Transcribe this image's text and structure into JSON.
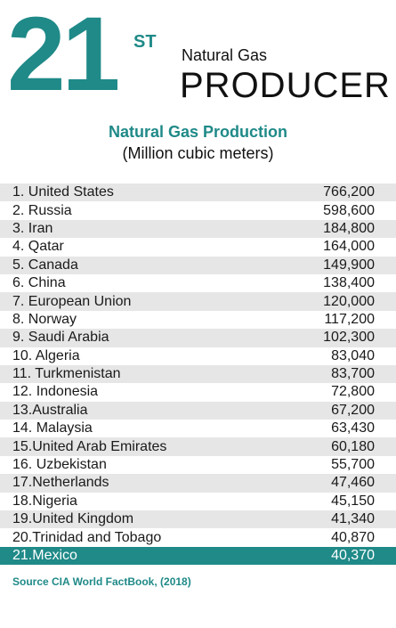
{
  "header": {
    "rank_number": "21",
    "rank_suffix": "ST",
    "line1": "Natural Gas",
    "line2": "PRODUCER"
  },
  "chart_data": {
    "type": "table",
    "title": "Natural Gas Production",
    "unit": "(Million cubic meters)",
    "rows": [
      {
        "label": "1.  United States",
        "value": "766,200"
      },
      {
        "label": "2.  Russia",
        "value": "598,600"
      },
      {
        "label": "3.  Iran",
        "value": "184,800"
      },
      {
        "label": "4.  Qatar",
        "value": "164,000"
      },
      {
        "label": "5.  Canada",
        "value": "149,900"
      },
      {
        "label": "6.  China",
        "value": "138,400"
      },
      {
        "label": "7.  European Union",
        "value": "120,000"
      },
      {
        "label": "8.  Norway",
        "value": "117,200"
      },
      {
        "label": "9.  Saudi Arabia",
        "value": "102,300"
      },
      {
        "label": "10. Algeria",
        "value": "83,040"
      },
      {
        "label": "11. Turkmenistan",
        "value": "83,700"
      },
      {
        "label": "12. Indonesia",
        "value": "72,800"
      },
      {
        "label": "13.Australia",
        "value": "67,200"
      },
      {
        "label": "14. Malaysia",
        "value": "63,430"
      },
      {
        "label": "15.United Arab Emirates",
        "value": "60,180"
      },
      {
        "label": "16. Uzbekistan",
        "value": "55,700"
      },
      {
        "label": "17.Netherlands",
        "value": "47,460"
      },
      {
        "label": "18.Nigeria",
        "value": "45,150"
      },
      {
        "label": "19.United Kingdom",
        "value": "41,340"
      },
      {
        "label": "20.Trinidad and Tobago",
        "value": "40,870"
      },
      {
        "label": "21.Mexico",
        "value": "40,370"
      }
    ],
    "highlight_index": 20
  },
  "source": "Source CIA World FactBook, (2018)",
  "colors": {
    "accent": "#1f8a88",
    "shade": "#e6e6e6"
  }
}
